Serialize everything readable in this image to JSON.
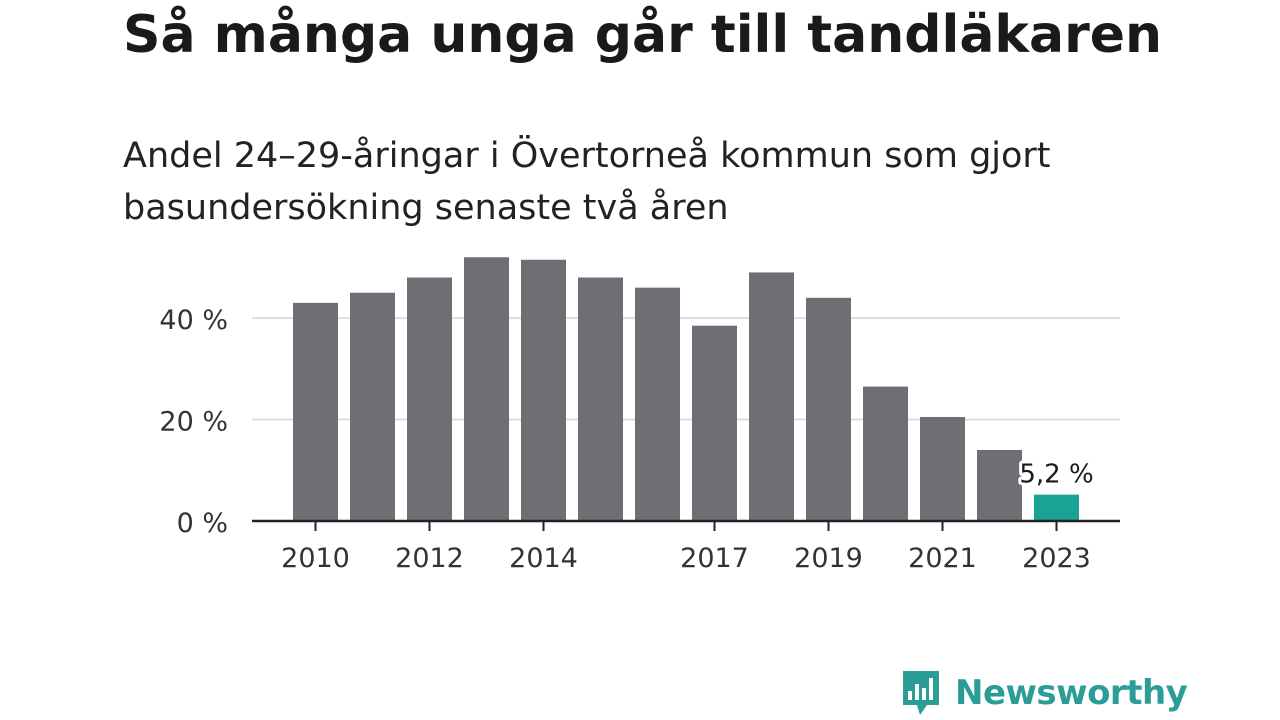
{
  "title": "Så många unga går till tandläkaren",
  "subtitle": "Andel 24–29-åringar i Övertorneå kommun som gjort basundersökning senaste två åren",
  "brand": {
    "name": "Newsworthy",
    "color": "#2a9d96"
  },
  "chart_data": {
    "type": "bar",
    "categories": [
      "2010",
      "2011",
      "2012",
      "2013",
      "2014",
      "2015",
      "2016",
      "2017",
      "2018",
      "2019",
      "2020",
      "2021",
      "2022",
      "2023"
    ],
    "values": [
      43,
      45,
      48,
      52,
      51.5,
      48,
      46,
      38.5,
      49,
      44,
      26.5,
      20.5,
      14,
      5.2
    ],
    "x_tick_labels": [
      "2010",
      "2012",
      "2014",
      "2017",
      "2019",
      "2021",
      "2023"
    ],
    "y_ticks": [
      0,
      20,
      40
    ],
    "y_tick_labels": [
      "0 %",
      "20 %",
      "40 %"
    ],
    "ylim": [
      0,
      55
    ],
    "highlight": {
      "category": "2023",
      "label": "5,2 %"
    },
    "colors": {
      "bar": "#6f6e75",
      "highlight": "#1aa394",
      "grid": "#dddddd",
      "axis": "#222222"
    },
    "grid": true,
    "xlabel": "",
    "ylabel": ""
  }
}
